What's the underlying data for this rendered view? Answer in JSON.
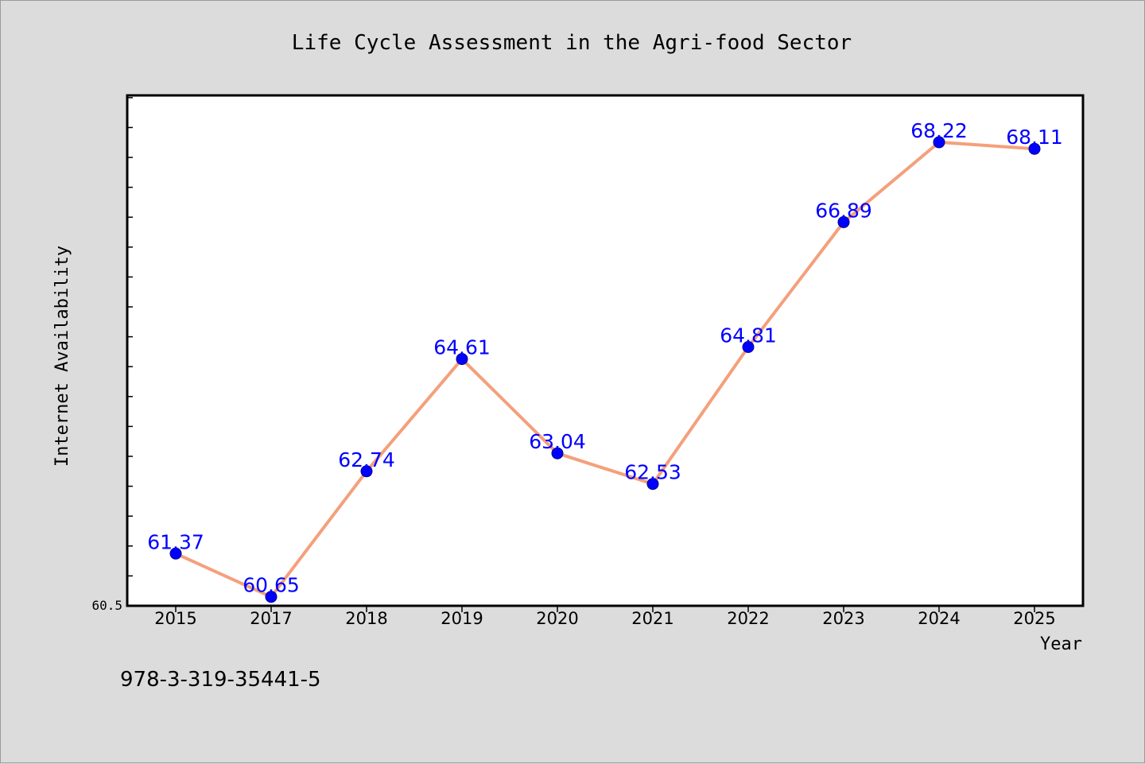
{
  "page": {
    "footer_text": "978-3-319-35441-5"
  },
  "colors": {
    "background": "#dcdcdc",
    "plot_background": "#ffffff",
    "line": "#f4a07c",
    "marker": "#0000ff",
    "label": "#0000ff",
    "axis": "#000000"
  },
  "chart_data": {
    "type": "line",
    "title": "Life Cycle Assessment in the Agri-food Sector",
    "xlabel": "Year",
    "ylabel": "Internet Availability",
    "categories": [
      "2015",
      "2017",
      "2018",
      "2019",
      "2020",
      "2021",
      "2022",
      "2023",
      "2024",
      "2025"
    ],
    "series": [
      {
        "values": [
          61.37,
          60.65,
          62.74,
          64.61,
          63.04,
          62.53,
          64.81,
          66.89,
          68.22,
          68.11
        ],
        "value_labels": [
          "61.37",
          "60.65",
          "62.74",
          "64.61",
          "63.04",
          "62.53",
          "64.81",
          "66.89",
          "68.22",
          "68.11"
        ]
      }
    ],
    "y_tick_label": "60.5",
    "ylim": [
      60.5,
      69.0
    ],
    "grid": false,
    "legend": "none"
  }
}
